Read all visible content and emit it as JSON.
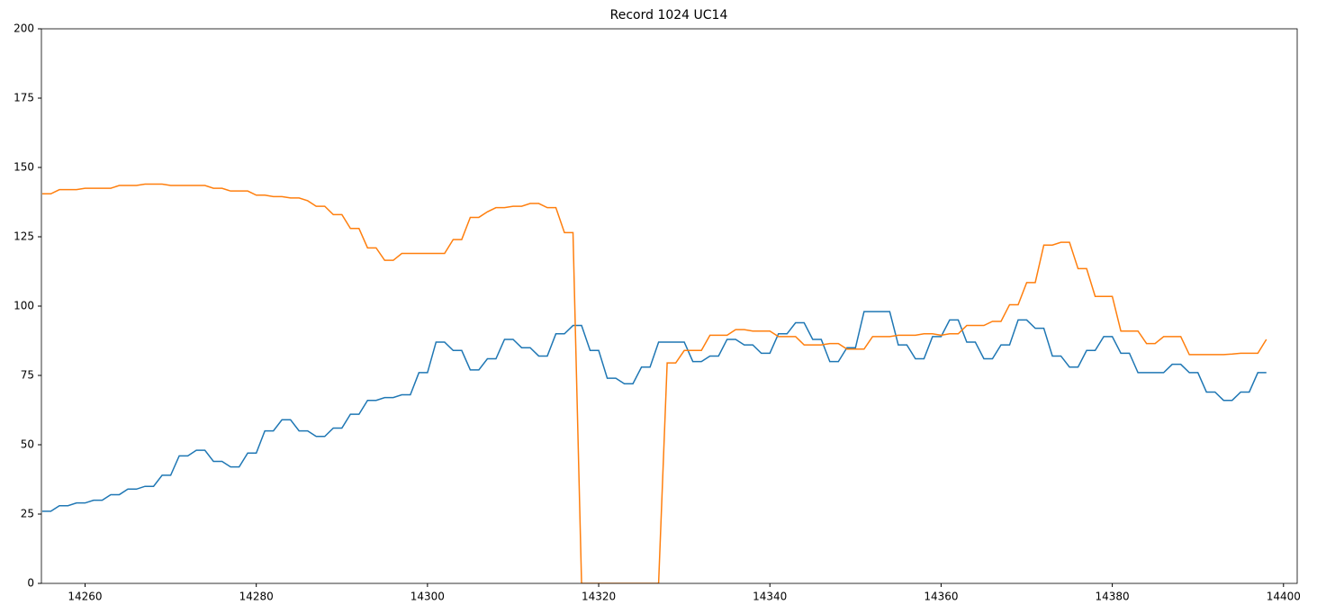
{
  "chart_data": {
    "type": "line",
    "title": "Record 1024 UC14",
    "x": [
      14255,
      14256,
      14257,
      14258,
      14259,
      14260,
      14261,
      14262,
      14263,
      14264,
      14265,
      14266,
      14267,
      14268,
      14269,
      14270,
      14271,
      14272,
      14273,
      14274,
      14275,
      14276,
      14277,
      14278,
      14279,
      14280,
      14281,
      14282,
      14283,
      14284,
      14285,
      14286,
      14287,
      14288,
      14289,
      14290,
      14291,
      14292,
      14293,
      14294,
      14295,
      14296,
      14297,
      14298,
      14299,
      14300,
      14301,
      14302,
      14303,
      14304,
      14305,
      14306,
      14307,
      14308,
      14309,
      14310,
      14311,
      14312,
      14313,
      14314,
      14315,
      14316,
      14317,
      14318,
      14319,
      14320,
      14321,
      14322,
      14323,
      14324,
      14325,
      14326,
      14327,
      14328,
      14329,
      14330,
      14331,
      14332,
      14333,
      14334,
      14335,
      14336,
      14337,
      14338,
      14339,
      14340,
      14341,
      14342,
      14343,
      14344,
      14345,
      14346,
      14347,
      14348,
      14349,
      14350,
      14351,
      14352,
      14353,
      14354,
      14355,
      14356,
      14357,
      14358,
      14359,
      14360,
      14361,
      14362,
      14363,
      14364,
      14365,
      14366,
      14367,
      14368,
      14369,
      14370,
      14371,
      14372,
      14373,
      14374,
      14375,
      14376,
      14377,
      14378,
      14379,
      14380,
      14381,
      14382,
      14383,
      14384,
      14385,
      14386,
      14387,
      14388,
      14389,
      14390,
      14391,
      14392,
      14393,
      14394,
      14395,
      14396,
      14397,
      14398
    ],
    "series": [
      {
        "color": "#1f77b4",
        "values": [
          26,
          26,
          28,
          28,
          29,
          29,
          30,
          30,
          32,
          32,
          34,
          34,
          35,
          35,
          39,
          39,
          46,
          46,
          48,
          48,
          44,
          44,
          42,
          42,
          47,
          47,
          55,
          55,
          59,
          59,
          55,
          55,
          53,
          53,
          56,
          56,
          61,
          61,
          66,
          66,
          67,
          67,
          68,
          68,
          76,
          76,
          87,
          87,
          84,
          84,
          77,
          77,
          81,
          81,
          88,
          88,
          85,
          85,
          82,
          82,
          90,
          90,
          93,
          93,
          84,
          84,
          74,
          74,
          72,
          72,
          78,
          78,
          87,
          87,
          87,
          87,
          80,
          80,
          82,
          82,
          88,
          88,
          86,
          86,
          83,
          83,
          90,
          90,
          94,
          94,
          88,
          88,
          80,
          80,
          85,
          85,
          98,
          98,
          98,
          98,
          86,
          86,
          81,
          81,
          89,
          89,
          95,
          95,
          87,
          87,
          81,
          81,
          86,
          86,
          95,
          95,
          92,
          92,
          82,
          82,
          78,
          78,
          84,
          84,
          89,
          89,
          83,
          83,
          76,
          76,
          76,
          76,
          79,
          79,
          76,
          76,
          69,
          69,
          66,
          66,
          69,
          69,
          76,
          76
        ]
      },
      {
        "color": "#ff7f0e",
        "values": [
          140.5,
          140.5,
          142,
          142,
          142,
          142.5,
          142.5,
          142.5,
          142.5,
          143.5,
          143.5,
          143.5,
          144,
          144,
          144,
          143.5,
          143.5,
          143.5,
          143.5,
          143.5,
          142.5,
          142.5,
          141.5,
          141.5,
          141.5,
          140,
          140,
          139.5,
          139.5,
          139,
          139,
          138,
          136,
          136,
          133,
          133,
          128,
          128,
          121,
          121,
          116.5,
          116.5,
          119,
          119,
          119,
          119,
          119,
          119,
          124,
          124,
          132,
          132,
          134,
          135.5,
          135.5,
          136,
          136,
          137,
          137,
          135.5,
          135.5,
          126.5,
          126.5,
          0,
          0,
          0,
          0,
          0,
          0,
          0,
          0,
          0,
          0,
          79.5,
          79.5,
          84,
          84,
          84,
          89.5,
          89.5,
          89.5,
          91.5,
          91.5,
          91,
          91,
          91,
          89,
          89,
          89,
          86,
          86,
          86,
          86.5,
          86.5,
          84.5,
          84.5,
          84.5,
          89,
          89,
          89,
          89.5,
          89.5,
          89.5,
          90,
          90,
          89.5,
          90,
          90,
          93,
          93,
          93,
          94.5,
          94.5,
          100.5,
          100.5,
          108.5,
          108.5,
          122,
          122,
          123,
          123,
          113.5,
          113.5,
          103.5,
          103.5,
          103.5,
          91,
          91,
          91,
          86.5,
          86.5,
          89,
          89,
          89,
          82.5,
          82.5,
          82.5,
          82.5,
          82.5,
          82.7,
          83,
          83,
          83,
          88
        ]
      }
    ],
    "xlim": [
      14254.9,
      14401.6
    ],
    "xticks": [
      14260,
      14280,
      14300,
      14320,
      14340,
      14360,
      14380,
      14400
    ],
    "ylim": [
      0,
      200
    ],
    "yticks": [
      0,
      25,
      50,
      75,
      100,
      125,
      150,
      175,
      200
    ]
  }
}
